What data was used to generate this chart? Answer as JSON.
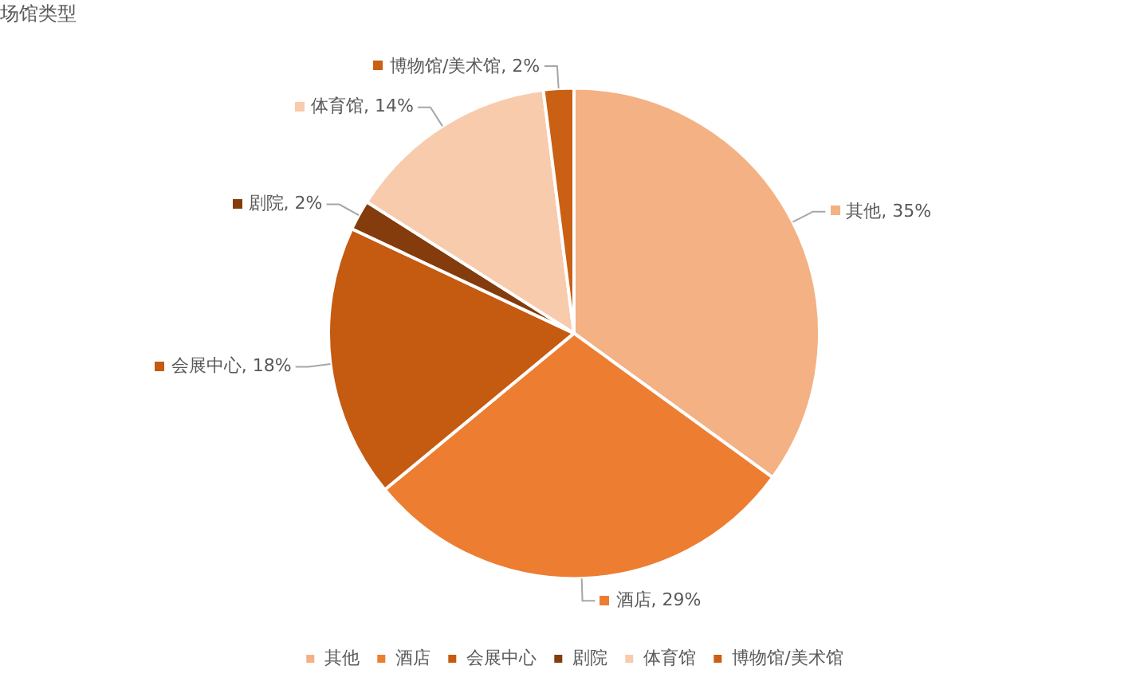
{
  "chart_data": {
    "type": "pie",
    "title": "场馆类型",
    "categories": [
      "其他",
      "酒店",
      "会展中心",
      "剧院",
      "体育馆",
      "博物馆/美术馆"
    ],
    "values": [
      35,
      29,
      18,
      2,
      14,
      2
    ],
    "value_labels": [
      "其他, 35%",
      "酒店, 29%",
      "会展中心, 18%",
      "剧院, 2%",
      "体育馆, 14%",
      "博物馆/美术馆, 2%"
    ],
    "colors": [
      "#f4b183",
      "#ed7d31",
      "#c55a11",
      "#843c0c",
      "#f8cbad",
      "#c96014"
    ],
    "legend": "bottom"
  }
}
